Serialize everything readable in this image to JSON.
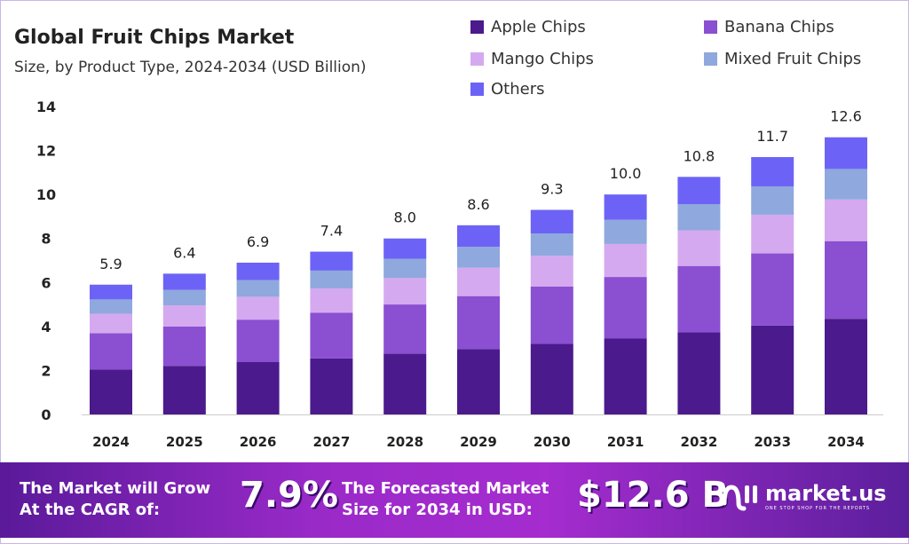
{
  "title": "Global Fruit Chips Market",
  "subtitle": "Size, by  Product Type, 2024-2034 (USD Billion)",
  "chart_data": {
    "type": "bar",
    "stacked": true,
    "categories": [
      "2024",
      "2025",
      "2026",
      "2027",
      "2028",
      "2029",
      "2030",
      "2031",
      "2032",
      "2033",
      "2034"
    ],
    "series": [
      {
        "name": "Apple Chips",
        "color": "#4b1a8c",
        "values": [
          2.04,
          2.21,
          2.38,
          2.55,
          2.76,
          2.97,
          3.21,
          3.45,
          3.73,
          4.04,
          4.35
        ]
      },
      {
        "name": "Banana Chips",
        "color": "#8b4fd1",
        "values": [
          1.65,
          1.79,
          1.93,
          2.07,
          2.24,
          2.41,
          2.6,
          2.8,
          3.02,
          3.28,
          3.53
        ]
      },
      {
        "name": "Mango Chips",
        "color": "#d5a9ef",
        "values": [
          0.89,
          0.96,
          1.04,
          1.11,
          1.2,
          1.29,
          1.4,
          1.5,
          1.62,
          1.76,
          1.89
        ]
      },
      {
        "name": "Mixed Fruit Chips",
        "color": "#8fa8dd",
        "values": [
          0.65,
          0.7,
          0.76,
          0.81,
          0.88,
          0.95,
          1.02,
          1.1,
          1.19,
          1.29,
          1.39
        ]
      },
      {
        "name": "Others",
        "color": "#6c63f6",
        "values": [
          0.67,
          0.74,
          0.79,
          0.86,
          0.92,
          0.98,
          1.07,
          1.15,
          1.24,
          1.33,
          1.44
        ]
      }
    ],
    "totals": [
      "5.9",
      "6.4",
      "6.9",
      "7.4",
      "8.0",
      "8.6",
      "9.3",
      "10.0",
      "10.8",
      "11.7",
      "12.6"
    ],
    "yticks": [
      "0",
      "2",
      "4",
      "6",
      "8",
      "10",
      "12",
      "14"
    ],
    "ylim": [
      0,
      14
    ],
    "grid": false,
    "legend_position": "top-right"
  },
  "footer": {
    "cagr_label_1": "The Market will Grow",
    "cagr_label_2": "At the CAGR of:",
    "cagr_value": "7.9%",
    "forecast_label_1": "The Forecasted Market",
    "forecast_label_2": "Size for 2034 in USD:",
    "forecast_value": "$12.6 B",
    "brand": "market.us",
    "tagline": "ONE STOP SHOP FOR THE REPORTS"
  }
}
